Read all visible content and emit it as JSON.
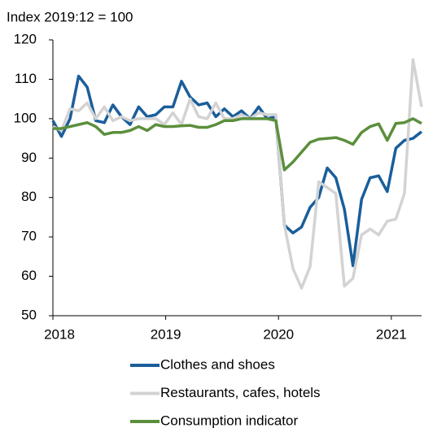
{
  "chart_data": {
    "type": "line",
    "y_label": "Index 2019:12 = 100",
    "x": [
      2018,
      2018.076,
      2018.152,
      2018.228,
      2018.304,
      2018.38,
      2018.456,
      2018.532,
      2018.608,
      2018.684,
      2018.76,
      2018.836,
      2018.912,
      2018.988,
      2019.064,
      2019.14,
      2019.216,
      2019.292,
      2019.368,
      2019.444,
      2019.52,
      2019.596,
      2019.672,
      2019.748,
      2019.824,
      2019.9,
      2019.976,
      2020.052,
      2020.128,
      2020.204,
      2020.28,
      2020.356,
      2020.432,
      2020.508,
      2020.584,
      2020.66,
      2020.736,
      2020.812,
      2020.888,
      2020.964,
      2021.04,
      2021.116,
      2021.192,
      2021.268
    ],
    "series": [
      {
        "name": "Clothes and shoes",
        "color": "#1a5e9a",
        "values": [
          99.5,
          95.5,
          100,
          110.8,
          108,
          99.5,
          99,
          103.5,
          100.5,
          98.5,
          103,
          100.5,
          101,
          103,
          103,
          109.5,
          105.5,
          103.5,
          104,
          100.5,
          102.5,
          100.5,
          102,
          100,
          103,
          100,
          100.5,
          73,
          71,
          72.5,
          77.5,
          80,
          87.5,
          85,
          77,
          62.7,
          79.5,
          85,
          85.5,
          81.5,
          92.5,
          94.5,
          95,
          96.7
        ]
      },
      {
        "name": "Restaurants, cafes, hotels",
        "color": "#d3d3d3",
        "values": [
          98,
          97,
          102.5,
          102,
          104,
          100,
          103,
          99.5,
          100.5,
          99.5,
          100,
          100,
          100,
          98.5,
          101.5,
          98.5,
          105,
          100.5,
          100,
          104,
          100,
          100,
          101,
          100,
          101.5,
          101,
          101,
          73,
          62,
          57,
          62.5,
          84,
          82.5,
          81,
          57.5,
          59.5,
          70.5,
          72,
          70.5,
          74,
          74.5,
          81,
          115,
          103
        ]
      },
      {
        "name": "Consumption indicator",
        "color": "#5b8f3c",
        "values": [
          97.5,
          97.5,
          98,
          98.5,
          99,
          98,
          96,
          96.5,
          96.5,
          97,
          98,
          97,
          98.5,
          98,
          98,
          98.2,
          98.3,
          97.8,
          97.8,
          98.5,
          99.5,
          99.5,
          100,
          100,
          100,
          100,
          99.5,
          87,
          89,
          91.5,
          94,
          94.8,
          95,
          95.2,
          94.5,
          93.5,
          96.5,
          98,
          98.7,
          94.5,
          98.8,
          99,
          100,
          98.8
        ]
      }
    ],
    "xlim": [
      2018,
      2021.268
    ],
    "xticks": [
      2018,
      2019,
      2020,
      2021
    ],
    "ylim": [
      50,
      120
    ],
    "yticks": [
      50,
      60,
      70,
      80,
      90,
      100,
      110,
      120
    ],
    "grid": false
  }
}
